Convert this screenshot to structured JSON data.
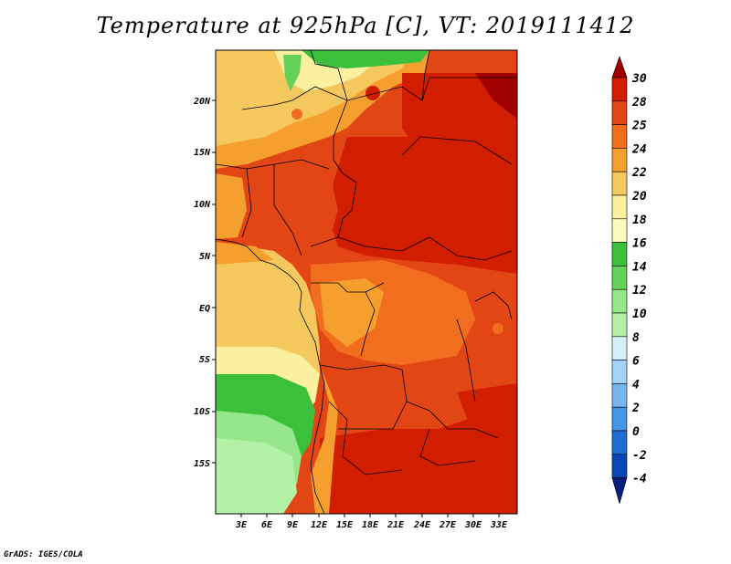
{
  "title": "Temperature at 925hPa [C], VT: 2019111412",
  "footer": "GrADS: IGES/COLA",
  "map": {
    "lat_labels": [
      "20N",
      "15N",
      "10N",
      "5N",
      "EQ",
      "5S",
      "10S",
      "15S"
    ],
    "lon_labels": [
      "3E",
      "6E",
      "9E",
      "12E",
      "15E",
      "18E",
      "21E",
      "24E",
      "27E",
      "30E",
      "33E"
    ]
  },
  "colorbar": {
    "labels": [
      "30",
      "28",
      "25",
      "24",
      "22",
      "20",
      "18",
      "16",
      "14",
      "12",
      "10",
      "8",
      "6",
      "4",
      "2",
      "0",
      "-2",
      "-4"
    ],
    "colors": [
      "#a00000",
      "#d21e00",
      "#e14614",
      "#f06e1e",
      "#f5a02e",
      "#f5c85e",
      "#faf0a0",
      "#fafabe",
      "#3cc03c",
      "#64d25a",
      "#96e68c",
      "#b4f0a6",
      "#d2f0fa",
      "#a0d2fa",
      "#78b4f0",
      "#4696e6",
      "#1e6ed2",
      "#0a46b4",
      "#0a1e82"
    ]
  }
}
